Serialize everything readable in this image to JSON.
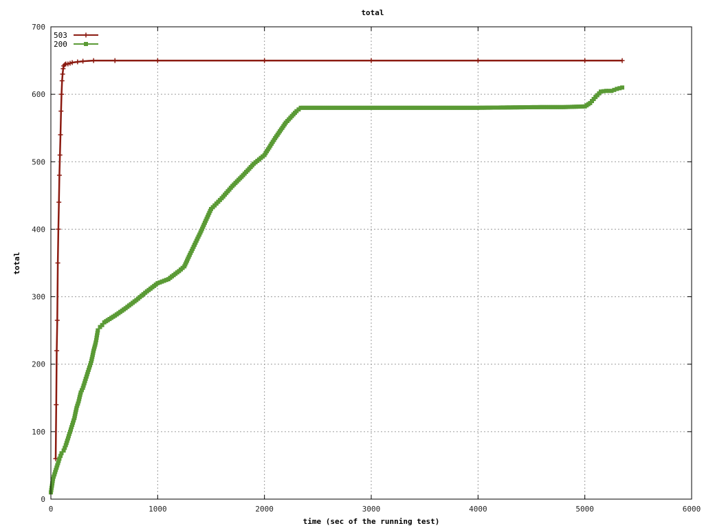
{
  "chart_data": {
    "type": "line",
    "title": "total",
    "xlabel": "time (sec of the running test)",
    "ylabel": "total",
    "xlim": [
      0,
      6000
    ],
    "ylim": [
      0,
      700
    ],
    "xticks": [
      0,
      1000,
      2000,
      3000,
      4000,
      5000,
      6000
    ],
    "yticks": [
      0,
      100,
      200,
      300,
      400,
      500,
      600,
      700
    ],
    "grid": true,
    "legend_position": "top-left",
    "series": [
      {
        "name": "503",
        "color": "#8b1a10",
        "marker": "plus",
        "x": [
          45,
          50,
          55,
          60,
          65,
          70,
          75,
          80,
          85,
          90,
          95,
          100,
          105,
          110,
          115,
          120,
          130,
          140,
          160,
          180,
          200,
          250,
          300,
          400,
          600,
          1000,
          2000,
          3000,
          4000,
          5000,
          5350
        ],
        "y": [
          60,
          140,
          220,
          265,
          350,
          400,
          440,
          480,
          510,
          540,
          575,
          600,
          620,
          630,
          638,
          642,
          644,
          645,
          645,
          646,
          647,
          648,
          649,
          650,
          650,
          650,
          650,
          650,
          650,
          650,
          650
        ]
      },
      {
        "name": "200",
        "color": "#5a9a35",
        "marker": "square",
        "x": [
          0,
          20,
          40,
          60,
          80,
          100,
          120,
          140,
          160,
          180,
          200,
          220,
          240,
          260,
          280,
          300,
          320,
          340,
          360,
          380,
          400,
          420,
          440,
          460,
          480,
          500,
          600,
          700,
          800,
          900,
          1000,
          1100,
          1200,
          1250,
          1300,
          1400,
          1500,
          1550,
          1600,
          1700,
          1800,
          1900,
          2000,
          2100,
          2200,
          2300,
          2340,
          3000,
          4000,
          4600,
          4800,
          5000,
          5050,
          5100,
          5150,
          5200,
          5250,
          5300,
          5350
        ],
        "y": [
          10,
          30,
          40,
          50,
          60,
          68,
          72,
          80,
          90,
          100,
          110,
          120,
          135,
          145,
          158,
          165,
          175,
          185,
          195,
          205,
          220,
          232,
          250,
          255,
          258,
          262,
          272,
          283,
          295,
          308,
          320,
          326,
          338,
          345,
          362,
          395,
          430,
          438,
          446,
          464,
          480,
          497,
          510,
          535,
          558,
          575,
          580,
          580,
          580,
          581,
          581,
          582,
          587,
          596,
          604,
          605,
          605,
          608,
          610
        ]
      }
    ]
  }
}
